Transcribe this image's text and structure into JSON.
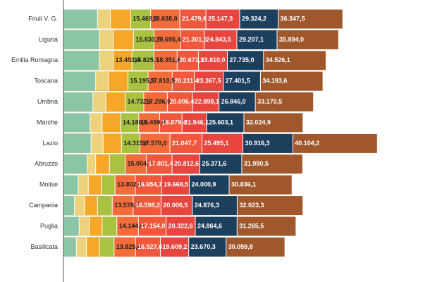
{
  "chart_data": {
    "type": "bar",
    "orientation": "horizontal",
    "overlap": true,
    "categories": [
      "Friuli V. G.",
      "Liguria",
      "Emilia Romagna",
      "Toscana",
      "Umbria",
      "Marche",
      "Lazio",
      "Abruzzo",
      "Molise",
      "Campania",
      "Puglia",
      "Basilicata"
    ],
    "xlim": [
      6000,
      42000
    ],
    "series": [
      {
        "color": "#8cc5a5",
        "label_color": "#222",
        "values": [
          9700,
          9900,
          9900,
          9500,
          9200,
          8900,
          9000,
          8600,
          7600,
          7200,
          7700,
          7400
        ],
        "value_labels": [
          null,
          null,
          null,
          null,
          null,
          null,
          null,
          null,
          null,
          null,
          null,
          null
        ]
      },
      {
        "color": "#ecd27a",
        "label_color": "#222",
        "values": [
          11100,
          11400,
          11400,
          10900,
          10600,
          10200,
          10300,
          9500,
          8700,
          8300,
          8800,
          8500
        ],
        "value_labels": [
          null,
          null,
          null,
          null,
          null,
          null,
          null,
          null,
          null,
          null,
          null,
          null
        ]
      },
      {
        "color": "#f7a728",
        "label_color": "#222",
        "values": [
          13300,
          13600,
          13453.4,
          13000,
          12700,
          12200,
          12300,
          11000,
          10100,
          9700,
          10200,
          9900
        ],
        "value_labels": [
          null,
          null,
          "13.453,4",
          null,
          null,
          null,
          null,
          null,
          null,
          null,
          null,
          null
        ]
      },
      {
        "color": "#a9c23f",
        "label_color": "#222",
        "values": [
          15469.1,
          15830.7,
          15825.3,
          15195.3,
          14732.6,
          14180.5,
          14315.6,
          12700,
          11600,
          11300,
          11800,
          11500
        ],
        "value_labels": [
          "15.469,1",
          "15.830,7",
          "15.825,3",
          "15.195,3",
          "14.732,6",
          "14.180,5",
          "14.315,6",
          null,
          null,
          null,
          null,
          null
        ]
      },
      {
        "color": "#f36c3a",
        "label_color": "#222",
        "values": [
          18638.0,
          18695.4,
          18351.6,
          17810.5,
          17286.9,
          16459.0,
          17570.0,
          15004.7,
          13802.6,
          13578.7,
          14144.9,
          13825.0
        ],
        "value_labels": [
          "18.638,0",
          "18.695,4",
          "18.351,6",
          "17.810,5",
          "17.286,9",
          "16.459,0",
          "17.570,0",
          "15.004,7",
          "13.802,6",
          "13.578,7",
          "14.144,9",
          "13.825,0"
        ]
      },
      {
        "color": "#f0573b",
        "label_color": "#fff",
        "values": [
          21479.6,
          21301.5,
          20671.3,
          20211.4,
          20006.4,
          18879.4,
          21047.7,
          17801.4,
          16654.7,
          16598.2,
          17154.0,
          16527.6
        ],
        "value_labels": [
          "21.479,6",
          "21.301,5",
          "20.671,3",
          "20.211,4",
          "20.006,4",
          "18.879,4",
          "21.047,7",
          "17.801,4",
          "16.654,7",
          "16.598,2",
          "17.154,0",
          "16.527,6"
        ]
      },
      {
        "color": "#e8453f",
        "label_color": "#fff",
        "values": [
          25147.3,
          24843.5,
          23810.0,
          23367.5,
          22898.1,
          21546.1,
          25495.1,
          20812.6,
          19668.5,
          20006.5,
          20322.6,
          19609.2
        ],
        "value_labels": [
          "25.147,3",
          "24.843,5",
          "23.810,0",
          "23.367,5",
          "22.898,1",
          "21.546,1",
          "25.495,1",
          "20.812,6",
          "19.668,5",
          "20.006,5",
          "20.322,6",
          "19.609,2"
        ]
      },
      {
        "color": "#1d3f5e",
        "label_color": "#fff",
        "values": [
          29324.2,
          29207.1,
          27735.0,
          27401.5,
          26846.0,
          25603.1,
          30916.3,
          25371.6,
          24000.9,
          24876.3,
          24864.6,
          23670.3
        ],
        "value_labels": [
          "29.324,2",
          "29.207,1",
          "27.735,0",
          "27.401,5",
          "26.846,0",
          "25.603,1",
          "30.916,3",
          "25.371,6",
          "24.000,9",
          "24.876,3",
          "24.864,6",
          "23.670,3"
        ]
      },
      {
        "color": "#a0572b",
        "label_color": "#fff",
        "values": [
          36347.5,
          35894.0,
          34526.1,
          34193.6,
          33170.5,
          32024.9,
          40104.2,
          31990.5,
          30836.1,
          32023.3,
          31265.5,
          30059.8
        ],
        "value_labels": [
          "36.347,5",
          "35.894,0",
          "34.526,1",
          "34.193,6",
          "33.170,5",
          "32.024,9",
          "40.104,2",
          "31.990,5",
          "30.836,1",
          "32.023,3",
          "31.265,5",
          "30.059,8"
        ]
      }
    ]
  }
}
